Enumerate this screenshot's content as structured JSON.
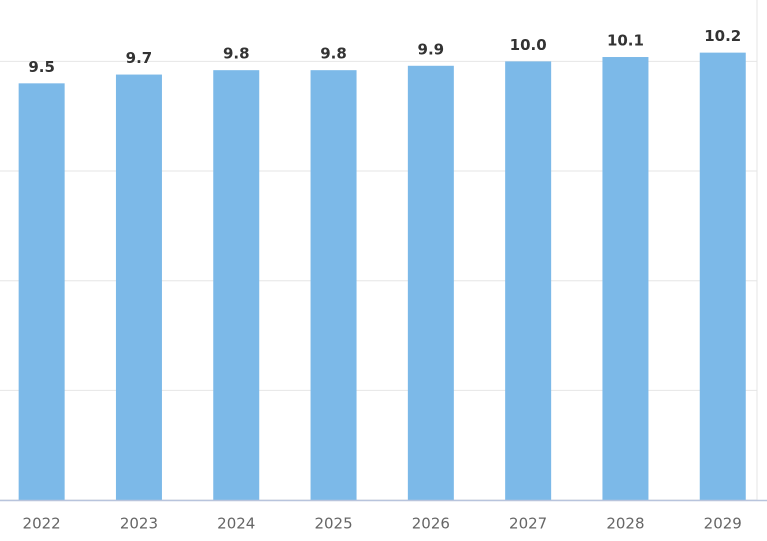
{
  "chart_data": {
    "type": "bar",
    "categories": [
      "2022",
      "2023",
      "2024",
      "2025",
      "2026",
      "2027",
      "2028",
      "2029"
    ],
    "values": [
      9.5,
      9.7,
      9.8,
      9.8,
      9.9,
      10.0,
      10.1,
      10.2
    ],
    "value_labels": [
      "9.5",
      "9.7",
      "9.8",
      "9.8",
      "9.9",
      "10.0",
      "10.1",
      "10.2"
    ],
    "color": "#7cb9e8",
    "ylim": [
      0,
      11.4
    ],
    "yticks": [
      0,
      2.5,
      5,
      7.5,
      10
    ],
    "grid": true
  }
}
